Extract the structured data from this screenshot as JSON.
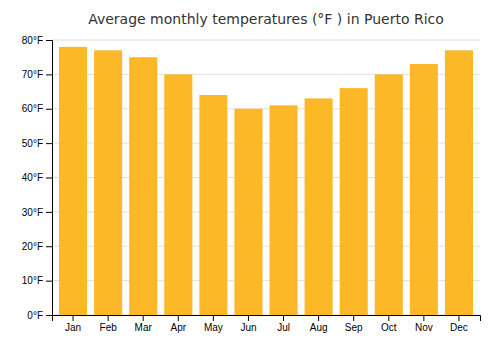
{
  "chart_data": {
    "type": "bar",
    "title": "Average monthly temperatures (°F ) in Puerto Rico",
    "categories": [
      "Jan",
      "Feb",
      "Mar",
      "Apr",
      "May",
      "Jun",
      "Jul",
      "Aug",
      "Sep",
      "Oct",
      "Nov",
      "Dec"
    ],
    "values": [
      78,
      77,
      75,
      70,
      64,
      60,
      61,
      63,
      66,
      70,
      73,
      77
    ],
    "color": "#FDB827",
    "ylim": [
      0,
      80
    ],
    "yticks": [
      {
        "value": 0,
        "label": "0°F"
      },
      {
        "value": 10,
        "label": "10°F"
      },
      {
        "value": 20,
        "label": "20°F"
      },
      {
        "value": 30,
        "label": "30°F"
      },
      {
        "value": 40,
        "label": "40°F"
      },
      {
        "value": 50,
        "label": "50°F"
      },
      {
        "value": 60,
        "label": "60°F"
      },
      {
        "value": 70,
        "label": "70°F"
      },
      {
        "value": 80,
        "label": "80°F"
      }
    ],
    "grid": true
  }
}
